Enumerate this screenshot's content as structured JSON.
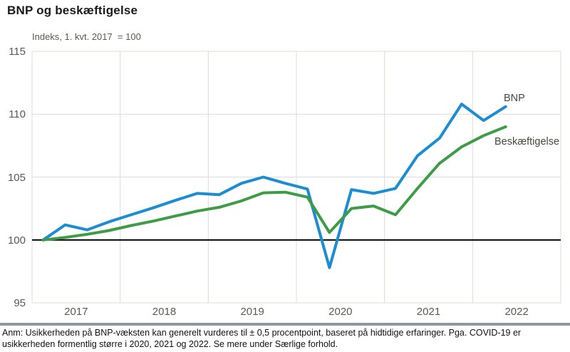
{
  "chart_data": {
    "type": "line",
    "title": "BNP og beskæftigelse",
    "subtitle": "Indeks, 1. kvt. 2017  = 100",
    "x_frequency": "quarterly",
    "x_range": [
      "2017-Q1",
      "2022-Q2"
    ],
    "categories_years": [
      "2017",
      "2018",
      "2019",
      "2020",
      "2021",
      "2022"
    ],
    "yticks": [
      115,
      110,
      105,
      100,
      95
    ],
    "ylim": [
      95,
      115
    ],
    "baseline": 100,
    "grid": true,
    "grid_color": "#dcdcd7",
    "baseline_color": "#000000",
    "legend_position": "end-of-line",
    "series": [
      {
        "name": "BNP",
        "color": "#1c8dd2",
        "values": [
          100.0,
          101.2,
          100.8,
          101.45,
          102.0,
          102.55,
          103.15,
          103.7,
          103.6,
          104.5,
          105.0,
          104.5,
          104.05,
          97.8,
          104.0,
          103.7,
          104.1,
          106.7,
          108.1,
          110.8,
          109.5,
          110.6
        ]
      },
      {
        "name": "Beskæftigelse",
        "color": "#3e9c47",
        "values": [
          100.0,
          100.2,
          100.45,
          100.75,
          101.15,
          101.5,
          101.9,
          102.3,
          102.6,
          103.1,
          103.75,
          103.8,
          103.4,
          100.6,
          102.5,
          102.7,
          102.0,
          104.1,
          106.1,
          107.4,
          108.3,
          109.0
        ]
      }
    ]
  },
  "note": "Anm: Usikkerheden på BNP-væksten kan generelt vurderes til ± 0,5 procentpoint, baseret på hidtidige erfaringer. Pga. COVID-19 er usikkerheden formentlig større i 2020, 2021 og 2022. Se mere under Særlige forhold.",
  "colors": {
    "divider": "#8c97a1",
    "axis_text": "#5a5a52",
    "series_label_text": "#474741"
  }
}
